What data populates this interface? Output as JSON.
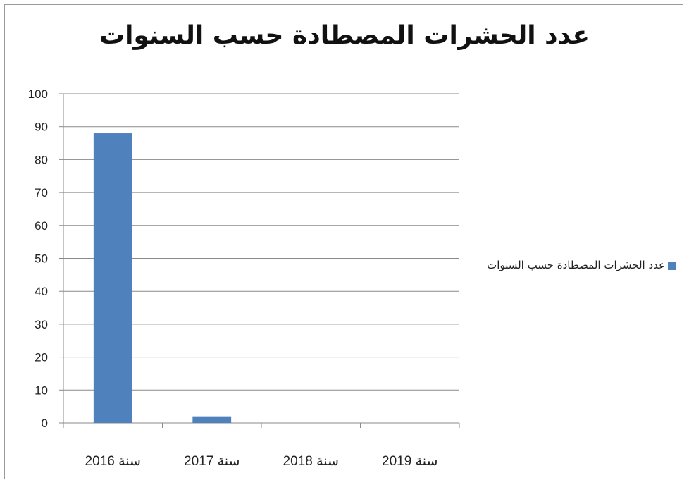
{
  "chart_data": {
    "type": "bar",
    "title": "عدد الحشرات المصطادة حسب السنوات",
    "categories": [
      "سنة 2016",
      "سنة 2017",
      "سنة 2018",
      "سنة 2019"
    ],
    "series": [
      {
        "name": "عدد الحشرات المصطادة حسب السنوات",
        "values": [
          88,
          2,
          0,
          0
        ],
        "color": "#4f81bd"
      }
    ],
    "ylim": [
      0,
      100
    ],
    "yticks": [
      0,
      10,
      20,
      30,
      40,
      50,
      60,
      70,
      80,
      90,
      100
    ],
    "grid": true,
    "legend": "right"
  }
}
